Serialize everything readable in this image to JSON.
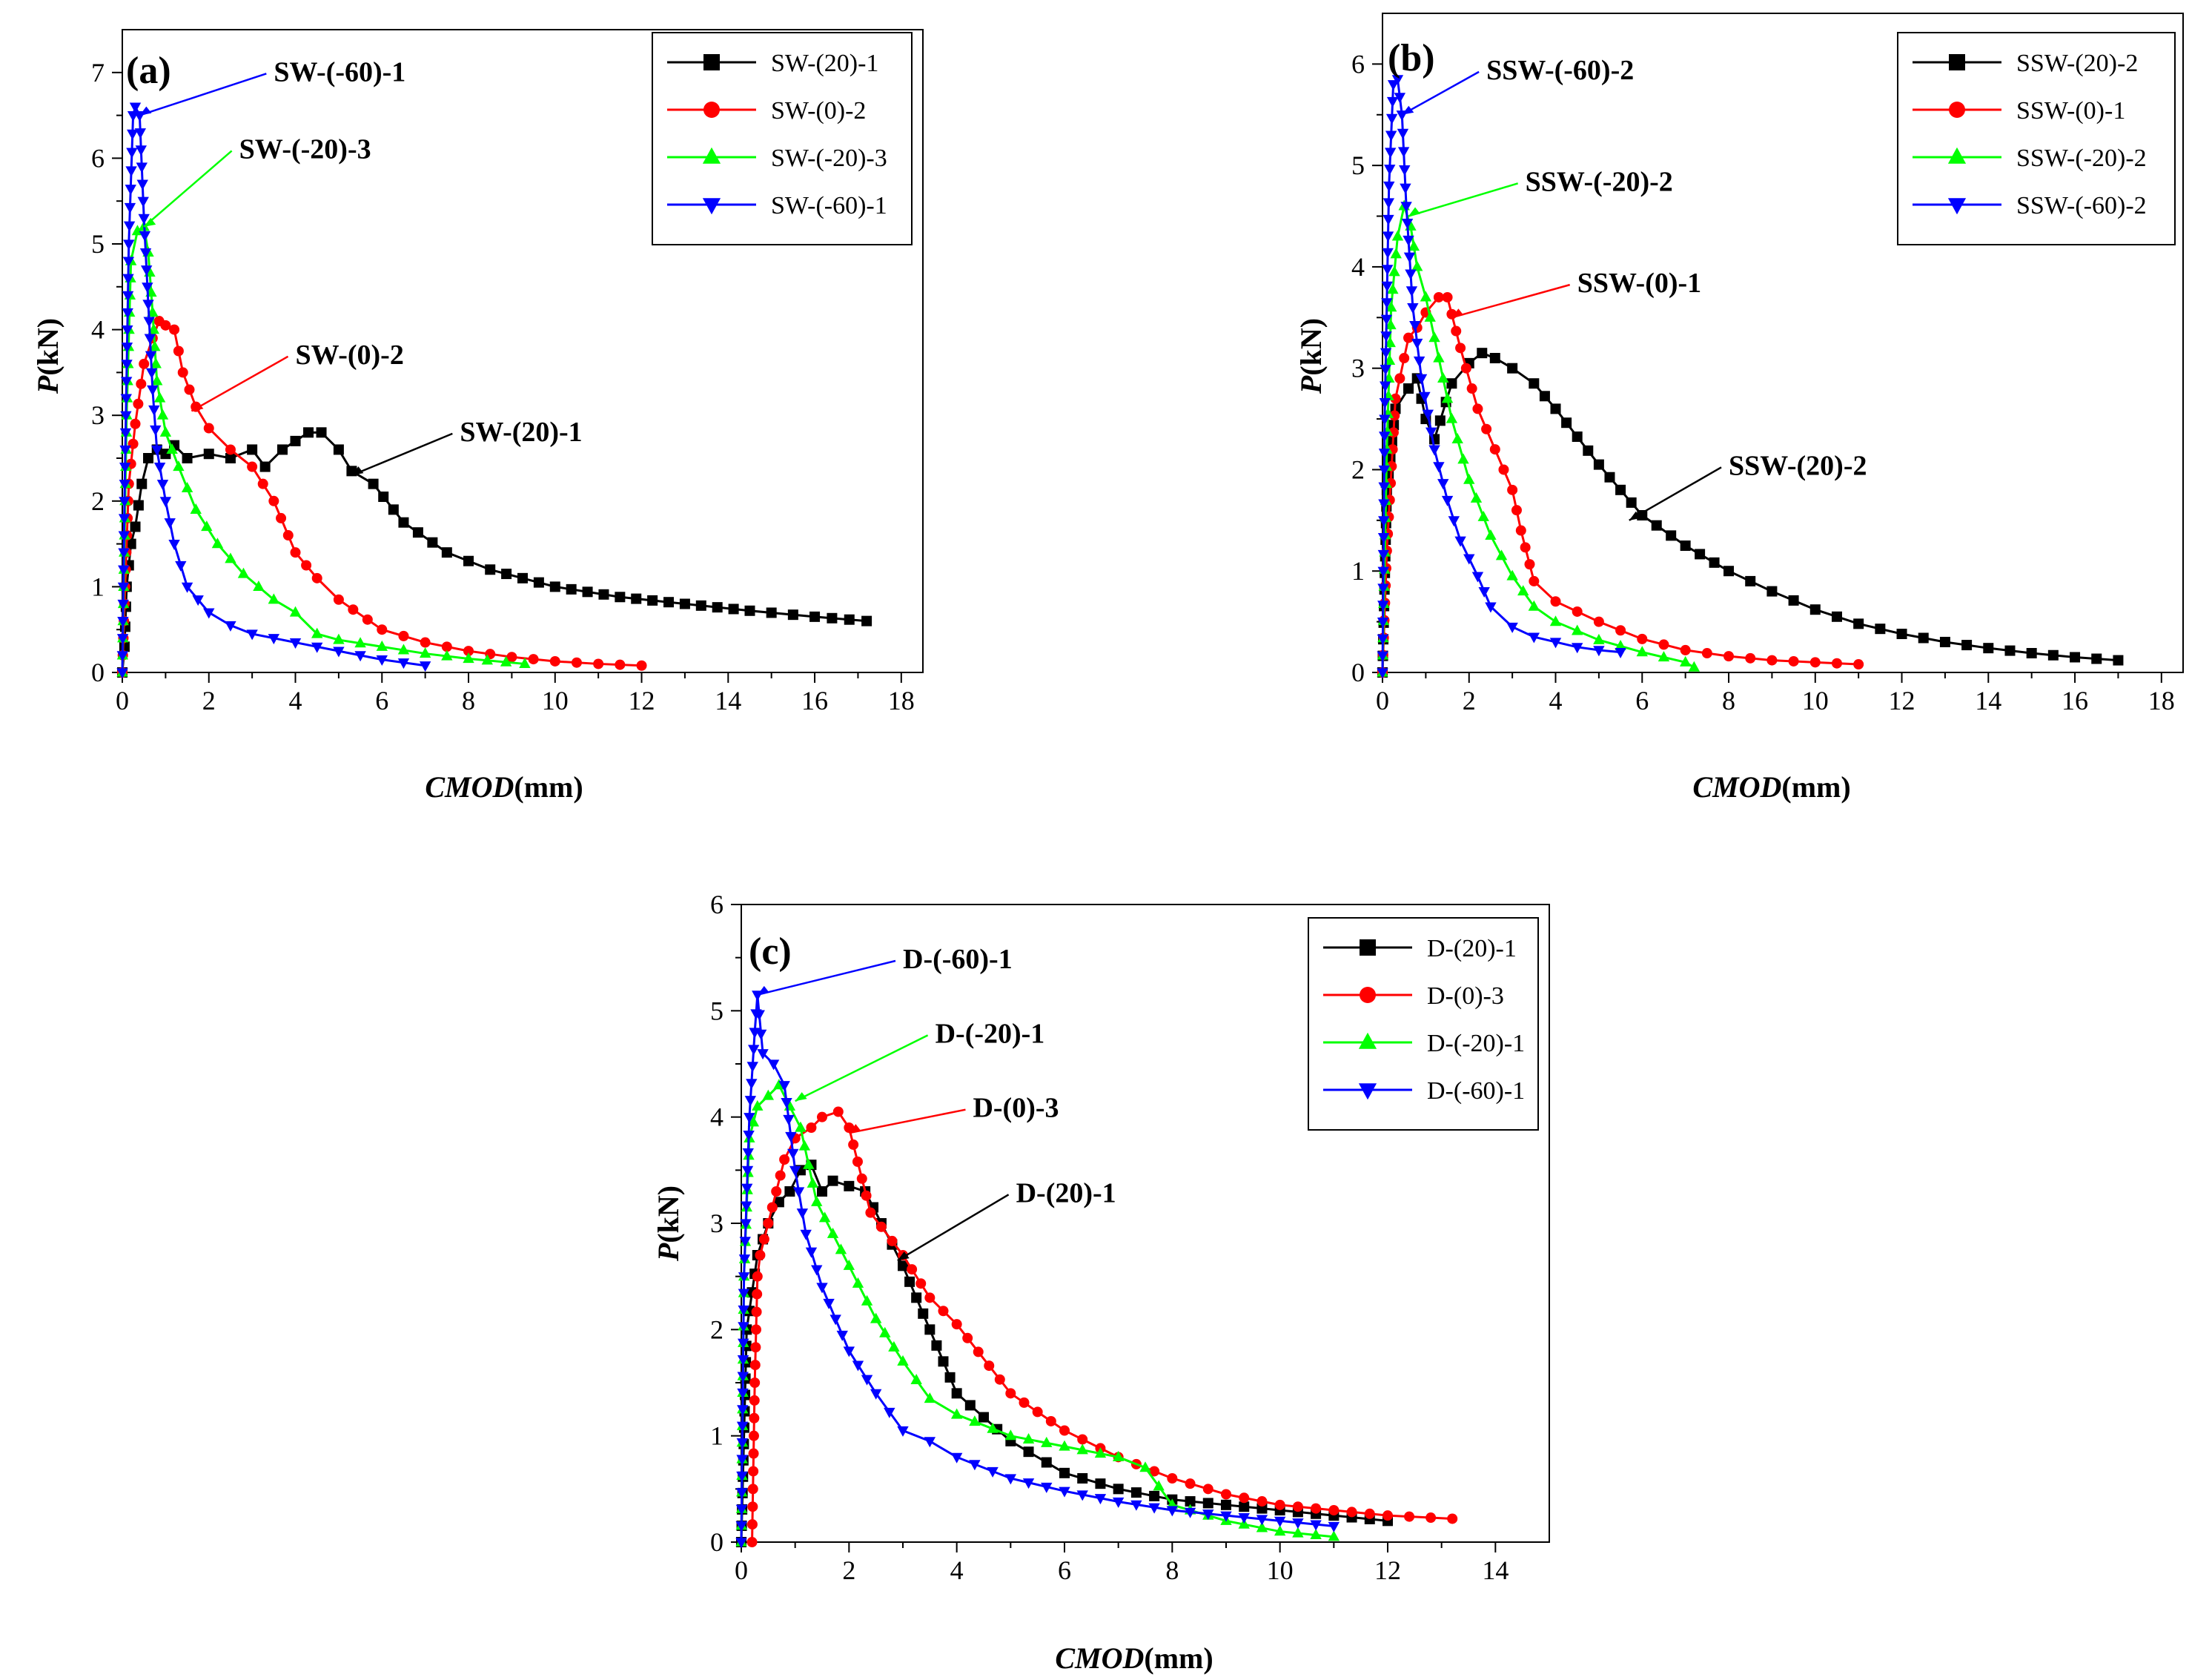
{
  "chart_data": [
    {
      "type": "line",
      "panel_label": "(a)",
      "xlabel_italic": "CMOD",
      "xlabel_unit": "(mm)",
      "ylabel_italic": "P",
      "ylabel_unit": "(kN)",
      "xlim": [
        0,
        18.5
      ],
      "ylim": [
        0,
        7.5
      ],
      "xticks": [
        0,
        2,
        4,
        6,
        8,
        10,
        12,
        14,
        16,
        18
      ],
      "yticks": [
        0,
        1,
        2,
        3,
        4,
        5,
        6,
        7
      ],
      "legend_position": "top-right",
      "series": [
        {
          "name": "SW-(20)-1",
          "color": "#000000",
          "marker": "square",
          "x": [
            0,
            0.05,
            0.1,
            0.2,
            0.3,
            0.45,
            0.6,
            0.8,
            1.0,
            1.2,
            1.5,
            2.0,
            2.5,
            3.0,
            3.3,
            3.7,
            4.0,
            4.3,
            4.6,
            5.0,
            5.3,
            5.8,
            6.5,
            7.5,
            8.5,
            10.0,
            11.5,
            13.0,
            14.5,
            16.0,
            17.2
          ],
          "y": [
            0,
            0.3,
            1.0,
            1.5,
            1.7,
            2.2,
            2.5,
            2.6,
            2.55,
            2.65,
            2.5,
            2.55,
            2.5,
            2.6,
            2.4,
            2.6,
            2.7,
            2.8,
            2.8,
            2.6,
            2.35,
            2.2,
            1.75,
            1.4,
            1.2,
            1.0,
            0.88,
            0.8,
            0.72,
            0.65,
            0.6
          ]
        },
        {
          "name": "SW-(0)-2",
          "color": "#ff0000",
          "marker": "circle",
          "x": [
            0,
            0.05,
            0.15,
            0.3,
            0.5,
            0.7,
            0.85,
            1.0,
            1.2,
            1.4,
            1.7,
            2.0,
            2.5,
            3.0,
            3.5,
            4.0,
            4.5,
            5.0,
            6.0,
            7.0,
            8.0,
            9.0,
            10.0,
            11.0,
            12.0
          ],
          "y": [
            0,
            0.8,
            2.2,
            2.9,
            3.6,
            3.9,
            4.1,
            4.05,
            4.0,
            3.5,
            3.1,
            2.85,
            2.6,
            2.4,
            2.0,
            1.4,
            1.1,
            0.85,
            0.5,
            0.35,
            0.25,
            0.18,
            0.13,
            0.1,
            0.08
          ]
        },
        {
          "name": "SW-(-20)-3",
          "color": "#00ff00",
          "marker": "triangle-up",
          "x": [
            0,
            0.1,
            0.2,
            0.35,
            0.5,
            0.6,
            0.7,
            0.8,
            1.0,
            1.3,
            1.7,
            2.2,
            2.8,
            3.5,
            4.0,
            4.5,
            5.0,
            6.0,
            7.0,
            8.0,
            9.3
          ],
          "y": [
            0,
            3.0,
            4.8,
            5.15,
            5.2,
            4.9,
            4.2,
            3.4,
            2.8,
            2.4,
            1.9,
            1.5,
            1.15,
            0.85,
            0.7,
            0.45,
            0.38,
            0.3,
            0.22,
            0.16,
            0.1
          ]
        },
        {
          "name": "SW-(-60)-1",
          "color": "#0000ff",
          "marker": "triangle-down",
          "x": [
            0,
            0.05,
            0.15,
            0.25,
            0.3,
            0.4,
            0.5,
            0.6,
            0.7,
            0.8,
            1.0,
            1.2,
            1.5,
            2.0,
            2.5,
            3.0,
            3.5,
            4.0,
            5.0,
            6.0,
            7.0
          ],
          "y": [
            0,
            2.0,
            5.0,
            6.5,
            6.6,
            6.5,
            5.3,
            4.3,
            3.3,
            2.6,
            2.0,
            1.5,
            1.0,
            0.7,
            0.55,
            0.45,
            0.4,
            0.35,
            0.25,
            0.15,
            0.08
          ]
        }
      ],
      "annotations": [
        {
          "text": "SW-(-60)-1",
          "series": "SW-(-60)-1",
          "at": [
            0.4,
            6.5
          ],
          "label_at": [
            3.5,
            6.9
          ]
        },
        {
          "text": "SW-(-20)-3",
          "series": "SW-(-20)-3",
          "at": [
            0.5,
            5.2
          ],
          "label_at": [
            2.7,
            6.0
          ]
        },
        {
          "text": "SW-(0)-2",
          "series": "SW-(0)-2",
          "at": [
            1.6,
            3.05
          ],
          "label_at": [
            4.0,
            3.6
          ]
        },
        {
          "text": "SW-(20)-1",
          "series": "SW-(20)-1",
          "at": [
            5.3,
            2.3
          ],
          "label_at": [
            7.8,
            2.7
          ]
        }
      ]
    },
    {
      "type": "line",
      "panel_label": "(b)",
      "xlabel_italic": "CMOD",
      "xlabel_unit": "(mm)",
      "ylabel_italic": "P",
      "ylabel_unit": "(kN)",
      "xlim": [
        0,
        18.5
      ],
      "ylim": [
        0,
        6.5
      ],
      "xticks": [
        0,
        2,
        4,
        6,
        8,
        10,
        12,
        14,
        16,
        18
      ],
      "yticks": [
        0,
        1,
        2,
        3,
        4,
        5,
        6
      ],
      "legend_position": "top-right",
      "series": [
        {
          "name": "SSW-(20)-2",
          "color": "#000000",
          "marker": "square",
          "x": [
            0,
            0.1,
            0.3,
            0.6,
            0.8,
            1.0,
            1.2,
            1.6,
            2.0,
            2.3,
            2.6,
            3.0,
            3.5,
            4.0,
            5.0,
            6.0,
            7.0,
            8.0,
            9.0,
            10.0,
            11.0,
            12.0,
            13.0,
            14.0,
            15.0,
            16.0,
            17.0
          ],
          "y": [
            0,
            1.8,
            2.6,
            2.8,
            2.9,
            2.5,
            2.3,
            2.85,
            3.05,
            3.15,
            3.1,
            3.0,
            2.85,
            2.6,
            2.05,
            1.55,
            1.25,
            1.0,
            0.8,
            0.62,
            0.48,
            0.38,
            0.3,
            0.24,
            0.19,
            0.15,
            0.12
          ]
        },
        {
          "name": "SSW-(0)-1",
          "color": "#ff0000",
          "marker": "circle",
          "x": [
            0,
            0.1,
            0.3,
            0.6,
            0.8,
            1.0,
            1.3,
            1.5,
            1.8,
            2.2,
            2.6,
            3.0,
            3.2,
            3.5,
            4.0,
            5.0,
            6.0,
            7.0,
            8.0,
            9.0,
            10.0,
            11.0
          ],
          "y": [
            0,
            1.2,
            2.7,
            3.3,
            3.4,
            3.55,
            3.7,
            3.7,
            3.2,
            2.6,
            2.2,
            1.8,
            1.4,
            0.9,
            0.7,
            0.5,
            0.33,
            0.22,
            0.16,
            0.12,
            0.1,
            0.08
          ]
        },
        {
          "name": "SSW-(-20)-2",
          "color": "#00ff00",
          "marker": "triangle-up",
          "x": [
            0,
            0.1,
            0.2,
            0.35,
            0.5,
            0.65,
            0.8,
            1.0,
            1.3,
            1.6,
            2.0,
            2.5,
            3.0,
            3.5,
            4.0,
            5.0,
            6.0,
            7.0,
            7.2
          ],
          "y": [
            0,
            2.2,
            3.6,
            4.3,
            4.6,
            4.4,
            4.0,
            3.7,
            3.1,
            2.5,
            1.9,
            1.35,
            0.95,
            0.65,
            0.5,
            0.32,
            0.2,
            0.1,
            0.05
          ]
        },
        {
          "name": "SSW-(-60)-2",
          "color": "#0000ff",
          "marker": "triangle-down",
          "x": [
            0,
            0.05,
            0.15,
            0.25,
            0.35,
            0.45,
            0.55,
            0.7,
            0.9,
            1.2,
            1.5,
            1.8,
            2.2,
            2.5,
            3.0,
            3.5,
            4.0,
            4.5,
            5.0,
            5.5
          ],
          "y": [
            0,
            2.5,
            4.8,
            5.8,
            5.85,
            5.5,
            4.6,
            3.6,
            2.9,
            2.2,
            1.7,
            1.3,
            0.95,
            0.65,
            0.45,
            0.35,
            0.3,
            0.25,
            0.22,
            0.2
          ]
        }
      ],
      "annotations": [
        {
          "text": "SSW-(-60)-2",
          "series": "SSW-(-60)-2",
          "at": [
            0.45,
            5.5
          ],
          "label_at": [
            2.4,
            5.85
          ]
        },
        {
          "text": "SSW-(-20)-2",
          "series": "SSW-(-20)-2",
          "at": [
            0.6,
            4.5
          ],
          "label_at": [
            3.3,
            4.75
          ]
        },
        {
          "text": "SSW-(0)-1",
          "series": "SSW-(0)-1",
          "at": [
            1.6,
            3.5
          ],
          "label_at": [
            4.5,
            3.75
          ]
        },
        {
          "text": "SSW-(20)-2",
          "series": "SSW-(20)-2",
          "at": [
            5.7,
            1.5
          ],
          "label_at": [
            8.0,
            1.95
          ]
        }
      ]
    },
    {
      "type": "line",
      "panel_label": "(c)",
      "xlabel_italic": "CMOD",
      "xlabel_unit": "(mm)",
      "ylabel_italic": "P",
      "ylabel_unit": "(kN)",
      "xlim": [
        0,
        15
      ],
      "ylim": [
        0,
        6
      ],
      "xticks": [
        0,
        2,
        4,
        6,
        8,
        10,
        12,
        14
      ],
      "yticks": [
        0,
        1,
        2,
        3,
        4,
        5,
        6
      ],
      "legend_position": "top-right",
      "series": [
        {
          "name": "D-(20)-1",
          "color": "#000000",
          "marker": "square",
          "x": [
            0,
            0.1,
            0.3,
            0.5,
            0.7,
            0.9,
            1.1,
            1.3,
            1.5,
            1.7,
            2.0,
            2.3,
            2.6,
            3.0,
            3.5,
            4.0,
            5.0,
            6.0,
            7.0,
            8.0,
            9.0,
            10.0,
            11.0,
            12.0
          ],
          "y": [
            0,
            2.0,
            2.7,
            3.0,
            3.2,
            3.3,
            3.5,
            3.55,
            3.3,
            3.4,
            3.35,
            3.3,
            3.0,
            2.6,
            2.0,
            1.4,
            0.95,
            0.65,
            0.5,
            0.4,
            0.35,
            0.3,
            0.25,
            0.2
          ]
        },
        {
          "name": "D-(0)-3",
          "color": "#ff0000",
          "marker": "circle",
          "x": [
            0.2,
            0.25,
            0.3,
            0.35,
            0.5,
            0.8,
            1.0,
            1.3,
            1.5,
            1.8,
            2.0,
            2.4,
            3.0,
            3.5,
            4.0,
            5.0,
            6.0,
            7.0,
            8.0,
            9.0,
            10.0,
            11.0,
            12.0,
            13.2
          ],
          "y": [
            0,
            1.5,
            2.5,
            2.7,
            3.0,
            3.6,
            3.8,
            3.9,
            4.0,
            4.05,
            3.9,
            3.1,
            2.7,
            2.3,
            2.05,
            1.4,
            1.05,
            0.8,
            0.6,
            0.45,
            0.35,
            0.3,
            0.25,
            0.22
          ]
        },
        {
          "name": "D-(-20)-1",
          "color": "#00ff00",
          "marker": "triangle-up",
          "x": [
            0,
            0.05,
            0.15,
            0.3,
            0.5,
            0.7,
            0.9,
            1.1,
            1.4,
            1.7,
            2.0,
            2.5,
            3.0,
            3.5,
            4.0,
            5.0,
            6.0,
            7.0,
            7.5,
            8.0,
            9.0,
            10.0,
            11.0
          ],
          "y": [
            0,
            2.5,
            3.8,
            4.1,
            4.2,
            4.3,
            4.1,
            3.9,
            3.2,
            2.9,
            2.6,
            2.1,
            1.7,
            1.35,
            1.2,
            1.0,
            0.9,
            0.8,
            0.7,
            0.35,
            0.2,
            0.1,
            0.05
          ]
        },
        {
          "name": "D-(-60)-1",
          "color": "#0000ff",
          "marker": "triangle-down",
          "x": [
            0,
            0.05,
            0.15,
            0.25,
            0.3,
            0.4,
            0.6,
            0.8,
            1.0,
            1.2,
            1.5,
            2.0,
            2.5,
            3.0,
            3.5,
            4.0,
            5.0,
            6.0,
            7.0,
            8.0,
            9.0,
            10.0,
            11.0
          ],
          "y": [
            0,
            2.5,
            4.0,
            4.8,
            5.15,
            4.6,
            4.5,
            4.3,
            3.5,
            2.9,
            2.4,
            1.8,
            1.4,
            1.05,
            0.95,
            0.8,
            0.6,
            0.48,
            0.38,
            0.3,
            0.25,
            0.2,
            0.15
          ]
        }
      ],
      "annotations": [
        {
          "text": "D-(-60)-1",
          "series": "D-(-60)-1",
          "at": [
            0.3,
            5.15
          ],
          "label_at": [
            3.0,
            5.4
          ]
        },
        {
          "text": "D-(-20)-1",
          "series": "D-(-20)-1",
          "at": [
            1.0,
            4.15
          ],
          "label_at": [
            3.6,
            4.7
          ]
        },
        {
          "text": "D-(0)-3",
          "series": "D-(0)-3",
          "at": [
            2.0,
            3.85
          ],
          "label_at": [
            4.3,
            4.0
          ]
        },
        {
          "text": "D-(20)-1",
          "series": "D-(20)-1",
          "at": [
            2.9,
            2.65
          ],
          "label_at": [
            5.1,
            3.2
          ]
        }
      ]
    }
  ]
}
